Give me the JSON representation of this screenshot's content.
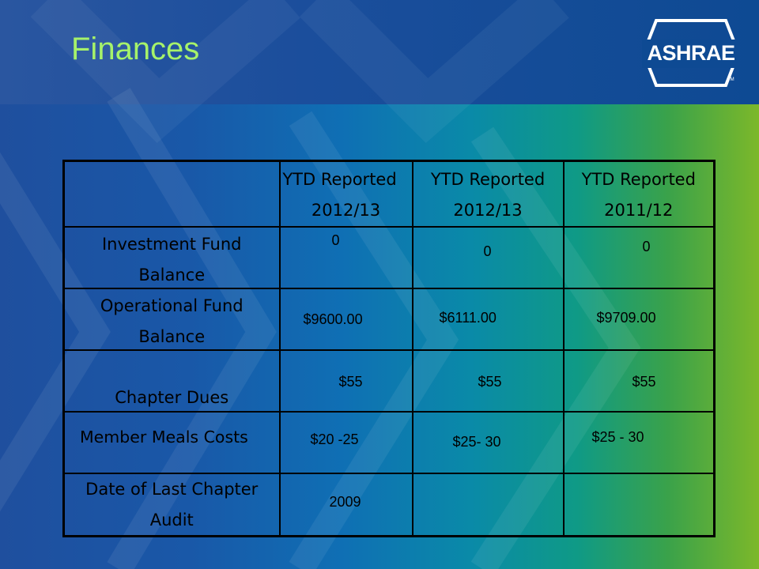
{
  "slide": {
    "title": "Finances",
    "logo_text": "ASHRAE",
    "logo_tm": "TM"
  },
  "table": {
    "headers": [
      "",
      "YTD Reported 2012/13",
      "YTD Reported 2012/13",
      "YTD Reported 2011/12"
    ],
    "header_lines": [
      [
        "",
        ""
      ],
      [
        "YTD Reported",
        "2012/13"
      ],
      [
        "YTD Reported",
        "2012/13"
      ],
      [
        "YTD Reported",
        "2011/12"
      ]
    ],
    "rows": [
      {
        "label": "Investment Fund Balance",
        "label_lines": [
          "Investment Fund",
          "Balance"
        ],
        "values": [
          "0",
          "0",
          "0"
        ]
      },
      {
        "label": "Operational Fund Balance",
        "label_lines": [
          "Operational Fund",
          "Balance"
        ],
        "values": [
          "$9600.00",
          "$6111.00",
          "$9709.00"
        ]
      },
      {
        "label": "Chapter Dues",
        "label_lines": [
          "Chapter Dues"
        ],
        "values": [
          "$55",
          "$55",
          "$55"
        ]
      },
      {
        "label": "Member Meals Costs",
        "label_lines": [
          "Member Meals Costs"
        ],
        "values": [
          "$20 -25",
          "$25- 30",
          "$25 - 30"
        ]
      },
      {
        "label": "Date of Last Chapter Audit",
        "label_lines": [
          "Date of Last Chapter",
          "Audit"
        ],
        "values": [
          "2009",
          "",
          ""
        ]
      }
    ]
  },
  "colors": {
    "title": "#a6f26a",
    "header_band": "#1b4e9c",
    "table_border": "#000000",
    "text": "#000000"
  }
}
